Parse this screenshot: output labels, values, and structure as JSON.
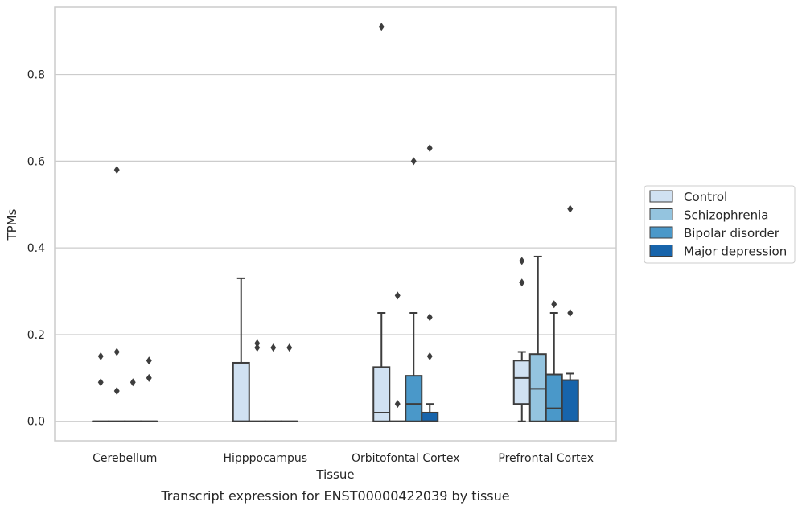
{
  "chart_data": {
    "type": "box",
    "caption": "Transcript expression for ENST00000422039 by tissue",
    "xlabel": "Tissue",
    "ylabel": "TPMs",
    "ylim": [
      -0.045,
      0.955
    ],
    "yticks": [
      0.0,
      0.2,
      0.4,
      0.6,
      0.8
    ],
    "ytick_labels": [
      "0.0",
      "0.2",
      "0.4",
      "0.6",
      "0.8"
    ],
    "grid": "horizontal",
    "legend_position": "right",
    "categories": [
      "Cerebellum",
      "Hipppocampus",
      "Orbitofontal Cortex",
      "Prefrontal Cortex"
    ],
    "series": [
      {
        "name": "Control",
        "color": "#d0e1f2",
        "boxes": [
          {
            "q1": 0,
            "median": 0,
            "q3": 0,
            "whislo": 0,
            "whishi": 0,
            "fliers": [
              0.15,
              0.09
            ]
          },
          {
            "q1": 0,
            "median": 0,
            "q3": 0.135,
            "whislo": 0,
            "whishi": 0.33,
            "fliers": []
          },
          {
            "q1": 0,
            "median": 0.02,
            "q3": 0.125,
            "whislo": 0,
            "whishi": 0.25,
            "fliers": [
              0.91
            ]
          },
          {
            "q1": 0.04,
            "median": 0.1,
            "q3": 0.14,
            "whislo": 0,
            "whishi": 0.16,
            "fliers": [
              0.37,
              0.32
            ]
          }
        ]
      },
      {
        "name": "Schizophrenia",
        "color": "#94c4df",
        "boxes": [
          {
            "q1": 0,
            "median": 0,
            "q3": 0,
            "whislo": 0,
            "whishi": 0,
            "fliers": [
              0.16,
              0.07,
              0.58
            ]
          },
          {
            "q1": 0,
            "median": 0,
            "q3": 0,
            "whislo": 0,
            "whishi": 0,
            "fliers": [
              0.18,
              0.17
            ]
          },
          {
            "q1": 0,
            "median": 0,
            "q3": 0,
            "whislo": 0,
            "whishi": 0,
            "fliers": [
              0.29,
              0.04
            ]
          },
          {
            "q1": 0,
            "median": 0.075,
            "q3": 0.155,
            "whislo": 0,
            "whishi": 0.38,
            "fliers": []
          }
        ]
      },
      {
        "name": "Bipolar disorder",
        "color": "#4a98c9",
        "boxes": [
          {
            "q1": 0,
            "median": 0,
            "q3": 0,
            "whislo": 0,
            "whishi": 0,
            "fliers": [
              0.09
            ]
          },
          {
            "q1": 0,
            "median": 0,
            "q3": 0,
            "whislo": 0,
            "whishi": 0,
            "fliers": [
              0.17
            ]
          },
          {
            "q1": 0,
            "median": 0.04,
            "q3": 0.105,
            "whislo": 0,
            "whishi": 0.25,
            "fliers": [
              0.6
            ]
          },
          {
            "q1": 0,
            "median": 0.03,
            "q3": 0.108,
            "whislo": 0,
            "whishi": 0.25,
            "fliers": [
              0.27
            ]
          }
        ]
      },
      {
        "name": "Major depression",
        "color": "#1764ab",
        "boxes": [
          {
            "q1": 0,
            "median": 0,
            "q3": 0,
            "whislo": 0,
            "whishi": 0,
            "fliers": [
              0.14,
              0.1
            ]
          },
          {
            "q1": 0,
            "median": 0,
            "q3": 0,
            "whislo": 0,
            "whishi": 0,
            "fliers": [
              0.17
            ]
          },
          {
            "q1": 0,
            "median": 0,
            "q3": 0.02,
            "whislo": 0,
            "whishi": 0.04,
            "fliers": [
              0.63,
              0.24,
              0.15
            ]
          },
          {
            "q1": 0,
            "median": 0,
            "q3": 0.095,
            "whislo": 0,
            "whishi": 0.11,
            "fliers": [
              0.49,
              0.25
            ]
          }
        ]
      }
    ]
  }
}
